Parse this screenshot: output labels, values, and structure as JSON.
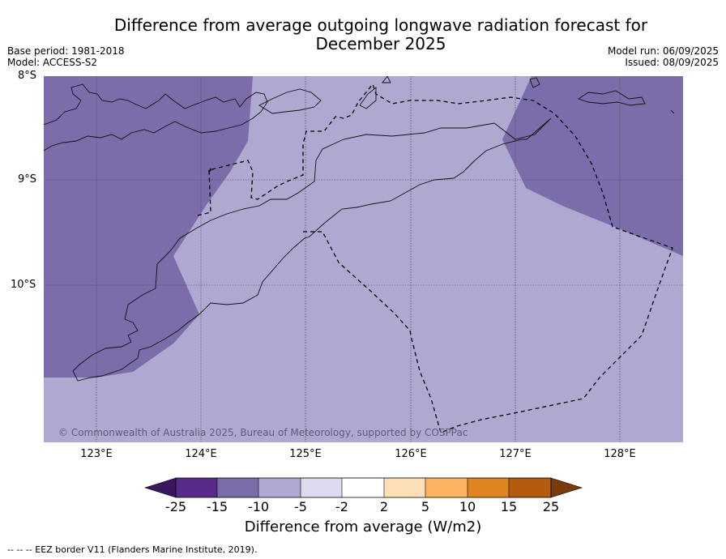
{
  "title": {
    "line1": "Difference from average outgoing longwave radiation forecast for",
    "line2": "December 2025"
  },
  "meta": {
    "base_period": "Base period: 1981-2018",
    "model": "Model: ACCESS-S2",
    "model_run": "Model run: 06/09/2025",
    "issued": "Issued: 08/09/2025"
  },
  "axes": {
    "lat_labels": [
      "8°S",
      "9°S",
      "10°S"
    ],
    "lon_labels": [
      "123°E",
      "124°E",
      "125°E",
      "126°E",
      "127°E",
      "128°E"
    ]
  },
  "credit": "© Commonwealth of Australia 2025, Bureau of Meteorology, supported by COSPPac",
  "colorbar": {
    "ticks": [
      "-25",
      "-15",
      "-10",
      "-5",
      "-2",
      "2",
      "5",
      "10",
      "15",
      "25"
    ],
    "title": "Difference from average (W/m2)",
    "colors": [
      "#3b1660",
      "#562a8a",
      "#7b6da9",
      "#afa8d0",
      "#dcdaee",
      "#ffffff",
      "#fde0b6",
      "#fbb562",
      "#df841e",
      "#b45b0d",
      "#7a3b0b"
    ]
  },
  "map": {
    "colors": {
      "moderate": "#7b6da9",
      "weak": "#afa8d0"
    }
  },
  "footnote": "--  --  -- EEZ border V11 (Flanders Marine Institute, 2019)."
}
